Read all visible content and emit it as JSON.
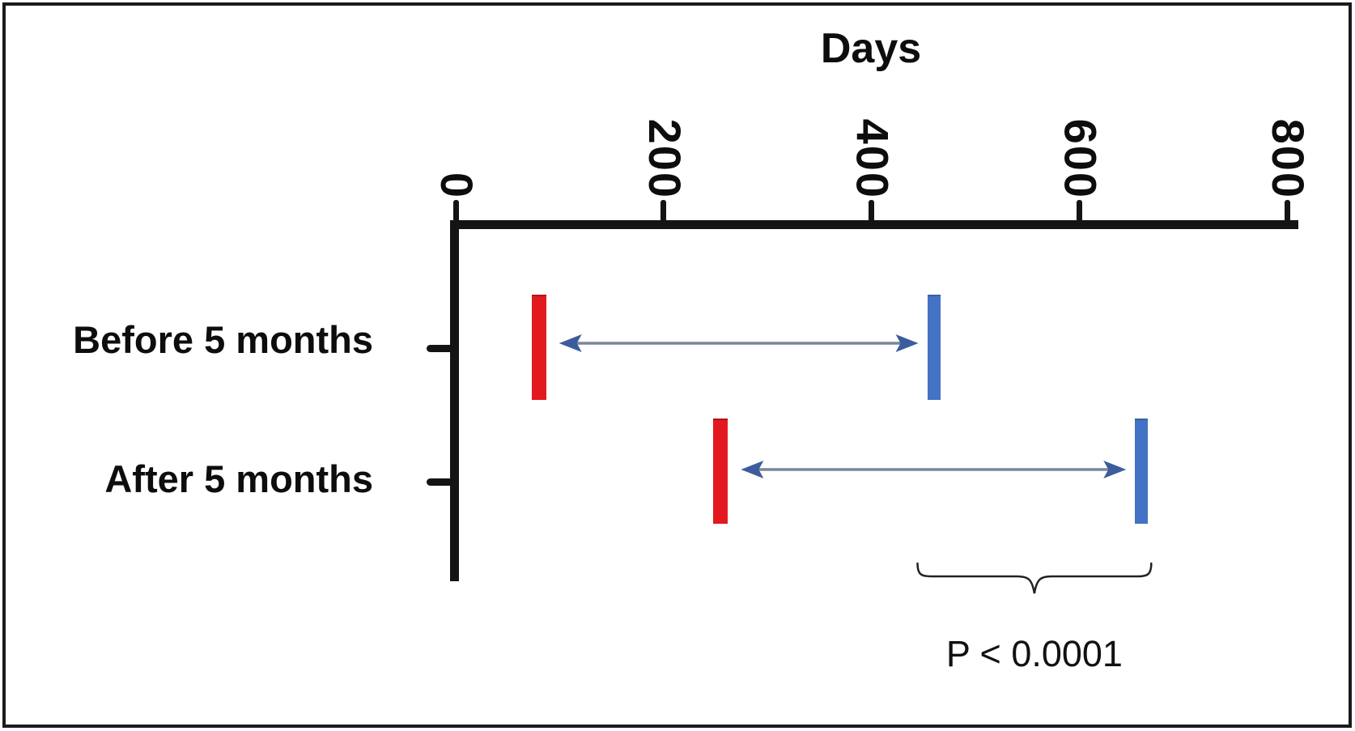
{
  "figure": {
    "axis_title": "Days",
    "p_value_label": "P < 0.0001"
  },
  "chart_data": {
    "type": "dumbbell-range",
    "title": "Days",
    "xlabel": "Days",
    "orientation": "horizontal",
    "xlim": [
      0,
      800
    ],
    "xticks": [
      "0",
      "200",
      "400",
      "600",
      "800"
    ],
    "grid": false,
    "categories": [
      "Before 5 months",
      "After 5 months"
    ],
    "series": [
      {
        "name": "start-marker",
        "marker": "red-bar",
        "color": "#e21a1e",
        "values_days": [
          80,
          255
        ]
      },
      {
        "name": "end-marker",
        "marker": "blue-bar",
        "color": "#4472c4",
        "values_days": [
          460,
          660
        ]
      }
    ],
    "arrows": [
      {
        "category": "Before 5 months",
        "from_days": 80,
        "to_days": 460,
        "style": "double-headed"
      },
      {
        "category": "After 5 months",
        "from_days": 255,
        "to_days": 660,
        "style": "double-headed"
      }
    ],
    "annotation": {
      "text": "P < 0.0001",
      "bracket_spans": "end-marker of Before 5 months to end-marker of After 5 months",
      "bracket_shape": "underbrace"
    },
    "colors": {
      "red_marker": "#e21a1e",
      "blue_marker": "#4472c4",
      "arrow_line": "#7a8799",
      "arrow_head": "#3c5c9c",
      "axis": "#141414",
      "bracket": "#222222"
    }
  }
}
